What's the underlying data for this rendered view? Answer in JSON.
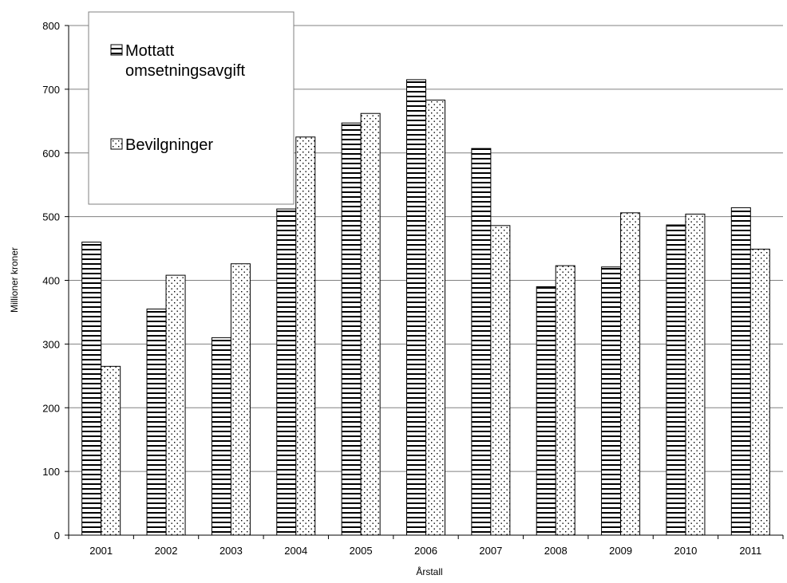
{
  "chart_data": {
    "type": "bar",
    "title": "",
    "xlabel": "Årstall",
    "ylabel": "Millioner kroner",
    "categories": [
      "2001",
      "2002",
      "2003",
      "2004",
      "2005",
      "2006",
      "2007",
      "2008",
      "2009",
      "2010",
      "2011"
    ],
    "series": [
      {
        "name_lines": [
          "Mottatt",
          "omsetningsavgift"
        ],
        "pattern": "horizontal-stripes",
        "values": [
          460,
          355,
          310,
          512,
          647,
          715,
          607,
          390,
          421,
          487,
          514
        ]
      },
      {
        "name_lines": [
          "Bevilgninger"
        ],
        "pattern": "dots",
        "values": [
          265,
          408,
          426,
          625,
          662,
          683,
          486,
          423,
          506,
          504,
          449
        ]
      }
    ],
    "ylim": [
      0,
      800
    ],
    "yticks": [
      0,
      100,
      200,
      300,
      400,
      500,
      600,
      700,
      800
    ],
    "grid": true,
    "legend_position": "top-left",
    "colors": {
      "bar_stroke": "#000000",
      "grid": "#808080",
      "background": "#ffffff"
    }
  }
}
